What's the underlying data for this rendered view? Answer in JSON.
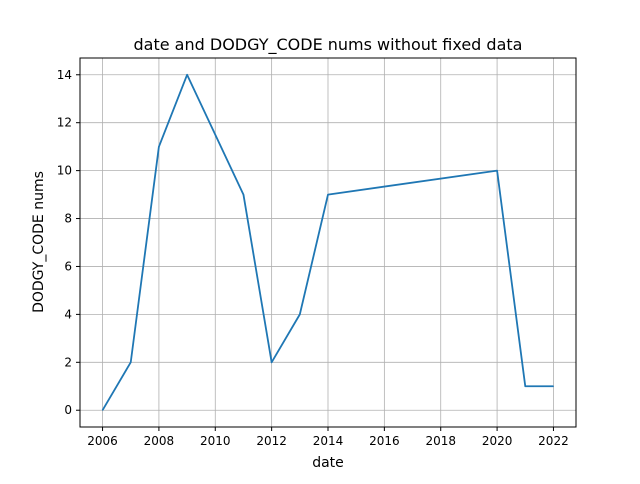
{
  "chart_data": {
    "type": "line",
    "title": "date and DODGY_CODE nums without fixed data",
    "xlabel": "date",
    "ylabel": "DODGY_CODE nums",
    "x": [
      2006,
      2007,
      2008,
      2009,
      2011,
      2012,
      2013,
      2014,
      2020,
      2021,
      2022
    ],
    "series": [
      {
        "values": [
          0,
          2,
          11,
          14,
          9,
          2,
          4,
          9,
          10,
          1,
          1
        ]
      }
    ],
    "xlim": [
      2005.2,
      2022.8
    ],
    "ylim": [
      -0.7,
      14.7
    ],
    "xticks": [
      2006,
      2008,
      2010,
      2012,
      2014,
      2016,
      2018,
      2020,
      2022
    ],
    "yticks": [
      0,
      2,
      4,
      6,
      8,
      10,
      12,
      14
    ],
    "grid": true,
    "line_color": "#1f77b4"
  }
}
